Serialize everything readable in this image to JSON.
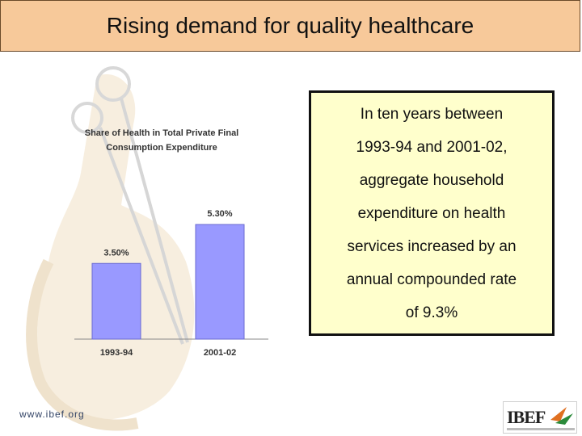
{
  "header": {
    "title": "Rising demand for quality healthcare"
  },
  "chart_data": {
    "type": "bar",
    "title": "Share of Health in Total Private Final Consumption Expenditure",
    "title_lines": [
      "Share of Health in Total Private Final",
      "Consumption Expenditure"
    ],
    "categories": [
      "1993-94",
      "2001-02"
    ],
    "values": [
      3.5,
      5.3
    ],
    "value_labels": [
      "3.50%",
      "5.30%"
    ],
    "ylim": [
      0,
      8.4
    ],
    "grid": false,
    "bar_color": "#9999ff"
  },
  "note": {
    "lines": [
      "In ten years between",
      "1993-94 and 2001-02,",
      "aggregate household",
      "expenditure on health",
      "services increased by an",
      "annual compounded rate",
      "of 9.3%"
    ]
  },
  "footer": {
    "url": "www.ibef.org",
    "logo_text": "IBEF"
  },
  "colors": {
    "title_bg": "#f7c99a",
    "note_bg": "#ffffcc",
    "bar": "#9999ff"
  }
}
